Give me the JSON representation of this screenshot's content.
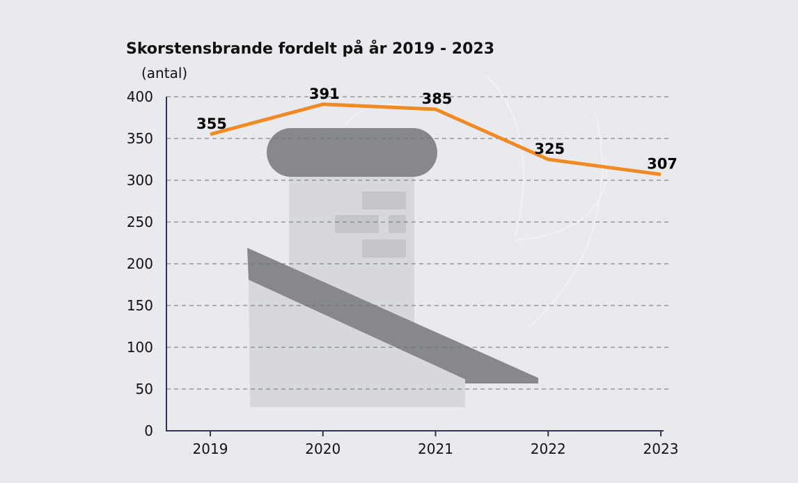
{
  "chart_data": {
    "type": "line",
    "title": "Skorstensbrande fordelt på år 2019 - 2023",
    "ylabel": "(antal)",
    "xlabel": "",
    "categories": [
      "2019",
      "2020",
      "2021",
      "2022",
      "2023"
    ],
    "series": [
      {
        "values": [
          355,
          391,
          385,
          325,
          307
        ]
      }
    ],
    "data_labels": [
      "355",
      "391",
      "385",
      "325",
      "307"
    ],
    "ylim": [
      0,
      400
    ],
    "yticks": [
      "0",
      "50",
      "100",
      "150",
      "200",
      "250",
      "300",
      "350",
      "400"
    ],
    "grid": true,
    "line_color": "#f08a24",
    "axis_color": "#2b3552",
    "grid_color": "#6b6f78",
    "background_icon": "chimney-icon"
  }
}
